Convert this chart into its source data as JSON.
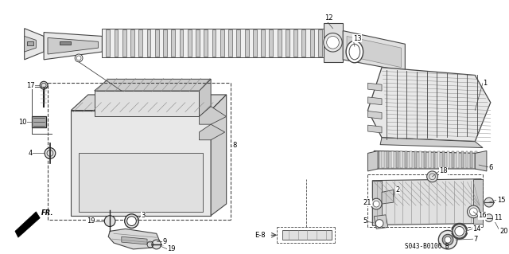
{
  "bg_color": "#ffffff",
  "fig_width": 6.4,
  "fig_height": 3.19,
  "dpi": 100,
  "ref_code": "S043-B0100 B",
  "label_fontsize": 6.0,
  "ref_fontsize": 5.5,
  "gray": "#444444",
  "lgray": "#888888",
  "dgray": "#222222",
  "black": "#000000"
}
